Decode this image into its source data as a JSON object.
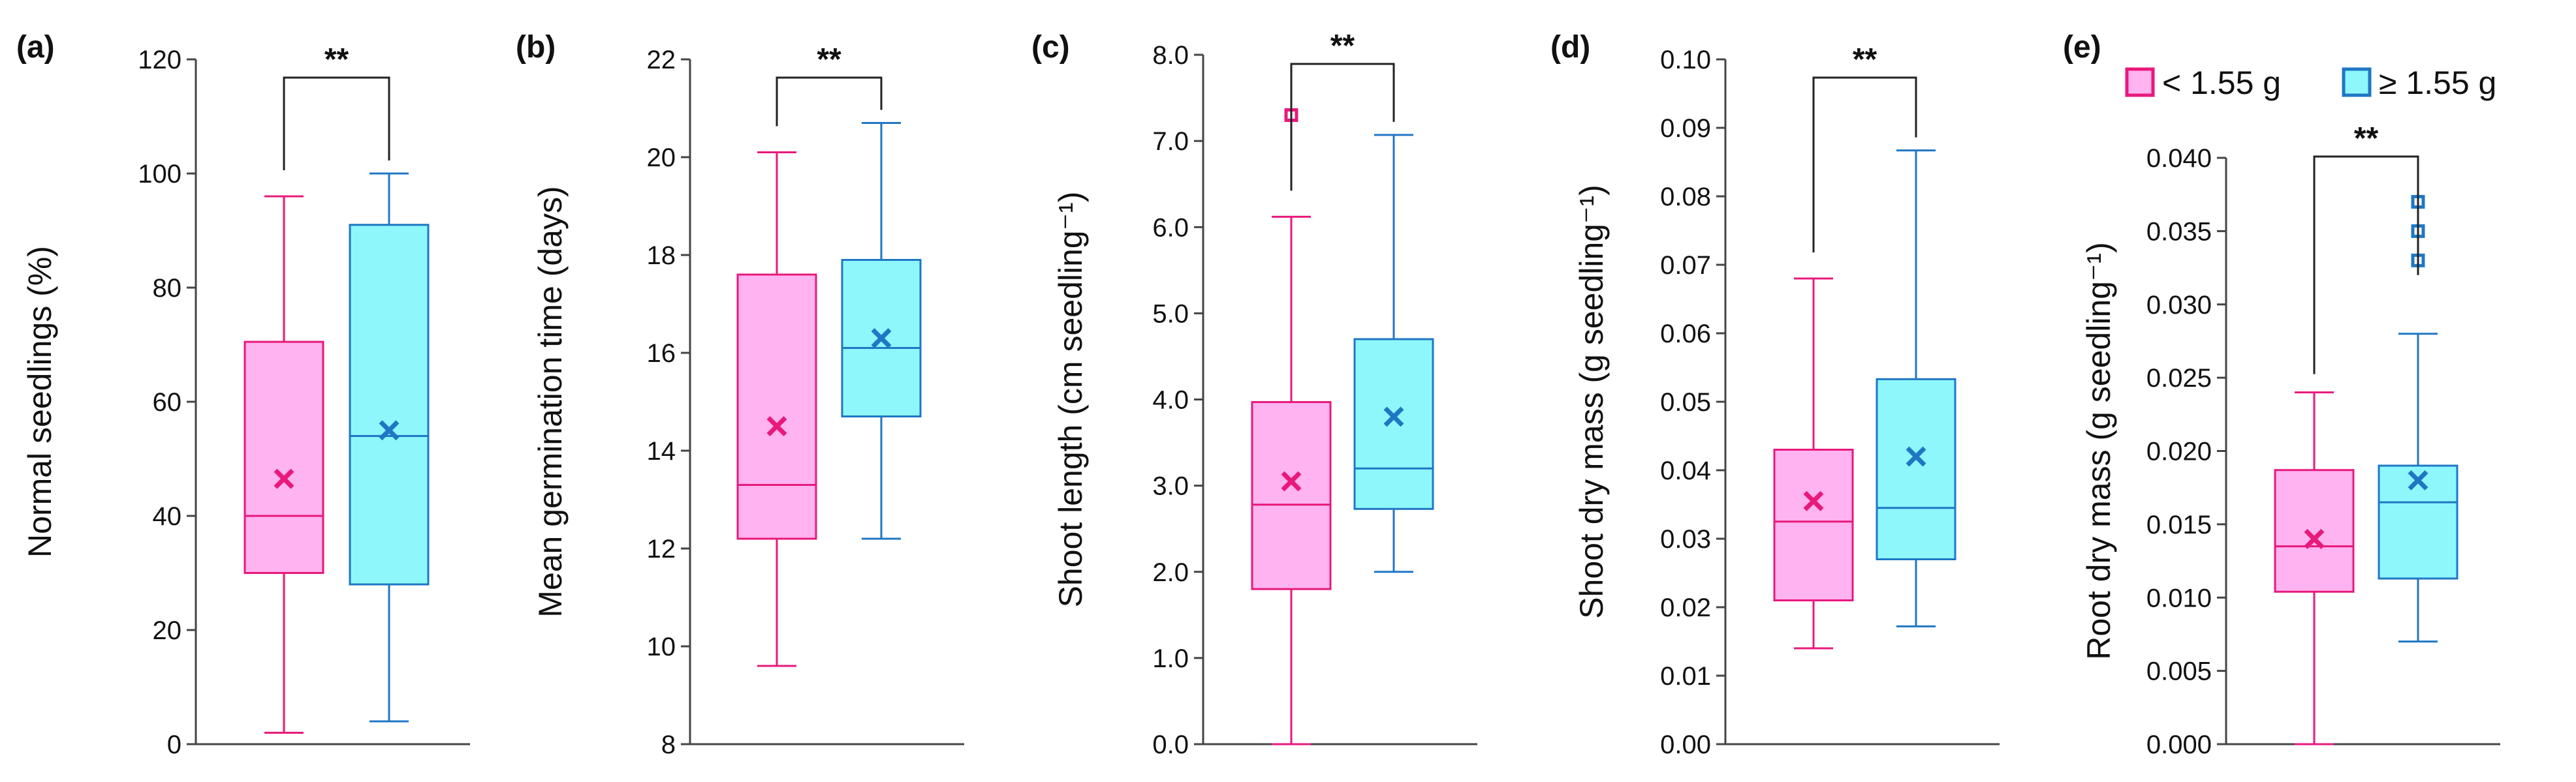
{
  "figure": {
    "groups": [
      {
        "name": "< 1.55 g",
        "color": "#e8197b",
        "fill": "#ffb3f0"
      },
      {
        "name": "≥ 1.55 g",
        "color": "#1f77c4",
        "fill": "#8ef7fb"
      }
    ],
    "legend": {
      "items": [
        "< 1.55 g",
        "≥ 1.55 g"
      ]
    }
  },
  "chart_data": [
    {
      "type": "box",
      "panel_label": "(a)",
      "ylabel": "Normal seedlings (%)",
      "ylim": [
        0,
        120
      ],
      "ticks": [
        "0",
        "20",
        "40",
        "60",
        "80",
        "100",
        "120"
      ],
      "significance": "**",
      "series": [
        {
          "name": "< 1.55 g",
          "min": 2,
          "q1": 30,
          "median": 40,
          "q3": 70.5,
          "max": 96,
          "mean": 46.5,
          "outliers": []
        },
        {
          "name": "≥ 1.55 g",
          "min": 4,
          "q1": 28,
          "median": 54,
          "q3": 91,
          "max": 100,
          "mean": 55,
          "outliers": []
        }
      ]
    },
    {
      "type": "box",
      "panel_label": "(b)",
      "ylabel": "Mean germination time (days)",
      "ylim": [
        8,
        22
      ],
      "ticks": [
        "8",
        "10",
        "12",
        "14",
        "16",
        "18",
        "20",
        "22"
      ],
      "significance": "**",
      "series": [
        {
          "name": "< 1.55 g",
          "min": 9.6,
          "q1": 12.2,
          "median": 13.3,
          "q3": 17.6,
          "max": 20.1,
          "mean": 14.5,
          "outliers": []
        },
        {
          "name": "≥ 1.55 g",
          "min": 12.2,
          "q1": 14.7,
          "median": 16.1,
          "q3": 17.9,
          "max": 20.7,
          "mean": 16.3,
          "outliers": []
        }
      ]
    },
    {
      "type": "box",
      "panel_label": "(c)",
      "ylabel": "Shoot length (cm seedling⁻¹)",
      "ylim": [
        0,
        8
      ],
      "ticks": [
        "0.0",
        "1.0",
        "2.0",
        "3.0",
        "4.0",
        "5.0",
        "6.0",
        "7.0",
        "8.0"
      ],
      "significance": "**",
      "series": [
        {
          "name": "< 1.55 g",
          "min": 0.0,
          "q1": 1.8,
          "median": 2.78,
          "q3": 3.97,
          "max": 6.12,
          "mean": 3.05,
          "outliers": [
            7.3
          ]
        },
        {
          "name": "≥ 1.55 g",
          "min": 2.0,
          "q1": 2.73,
          "median": 3.2,
          "q3": 4.7,
          "max": 7.07,
          "mean": 3.8,
          "outliers": []
        }
      ]
    },
    {
      "type": "box",
      "panel_label": "(d)",
      "ylabel": "Shoot dry mass (g seedling⁻¹)",
      "ylim": [
        0,
        0.1
      ],
      "ticks": [
        "0.00",
        "0.01",
        "0.02",
        "0.03",
        "0.04",
        "0.05",
        "0.06",
        "0.07",
        "0.08",
        "0.09",
        "0.10"
      ],
      "significance": "**",
      "series": [
        {
          "name": "< 1.55 g",
          "min": 0.014,
          "q1": 0.021,
          "median": 0.0325,
          "q3": 0.043,
          "max": 0.068,
          "mean": 0.0355,
          "outliers": []
        },
        {
          "name": "≥ 1.55 g",
          "min": 0.0172,
          "q1": 0.027,
          "median": 0.0345,
          "q3": 0.0533,
          "max": 0.0867,
          "mean": 0.042,
          "outliers": []
        }
      ]
    },
    {
      "type": "box",
      "panel_label": "(e)",
      "ylabel": "Root dry mass (g seedling⁻¹)",
      "ylim": [
        0,
        0.04
      ],
      "ticks": [
        "0.000",
        "0.005",
        "0.010",
        "0.015",
        "0.020",
        "0.025",
        "0.030",
        "0.035",
        "0.040"
      ],
      "significance": "**",
      "series": [
        {
          "name": "< 1.55 g",
          "min": 0.0,
          "q1": 0.0104,
          "median": 0.0135,
          "q3": 0.0187,
          "max": 0.024,
          "mean": 0.014,
          "outliers": []
        },
        {
          "name": "≥ 1.55 g",
          "min": 0.007,
          "q1": 0.0113,
          "median": 0.0165,
          "q3": 0.019,
          "max": 0.028,
          "mean": 0.018,
          "outliers": [
            0.033,
            0.035,
            0.037
          ]
        }
      ]
    }
  ]
}
